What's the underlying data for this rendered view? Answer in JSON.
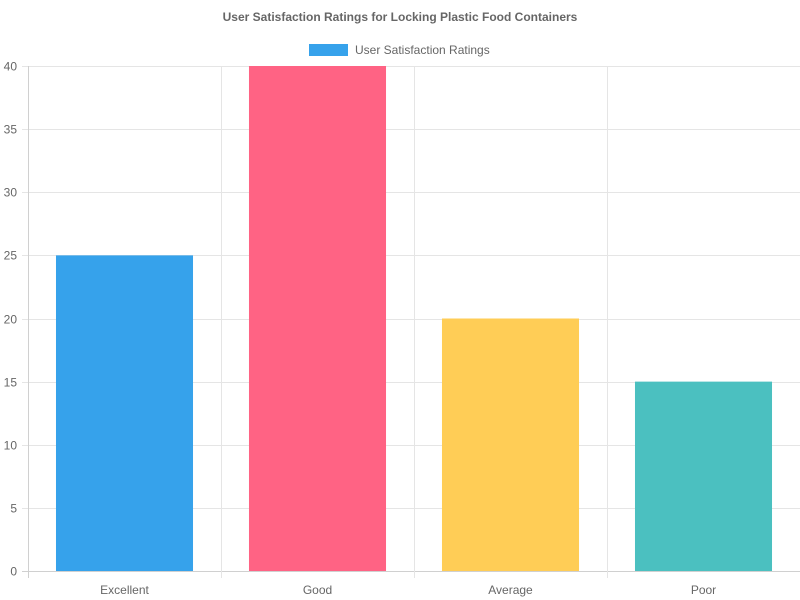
{
  "chart_data": {
    "type": "bar",
    "title": "User Satisfaction Ratings for Locking Plastic Food Containers",
    "categories": [
      "Excellent",
      "Good",
      "Average",
      "Poor"
    ],
    "series": [
      {
        "name": "User Satisfaction Ratings",
        "values": [
          25,
          40,
          20,
          15
        ]
      }
    ],
    "colors": [
      "#36a2eb",
      "#ff6384",
      "#ffcd56",
      "#4bc0c0"
    ],
    "legend_color": "#36a2eb",
    "ylim": [
      0,
      40
    ],
    "yticks": [
      0,
      5,
      10,
      15,
      20,
      25,
      30,
      35,
      40
    ],
    "grid": true,
    "legend_position": "top"
  }
}
